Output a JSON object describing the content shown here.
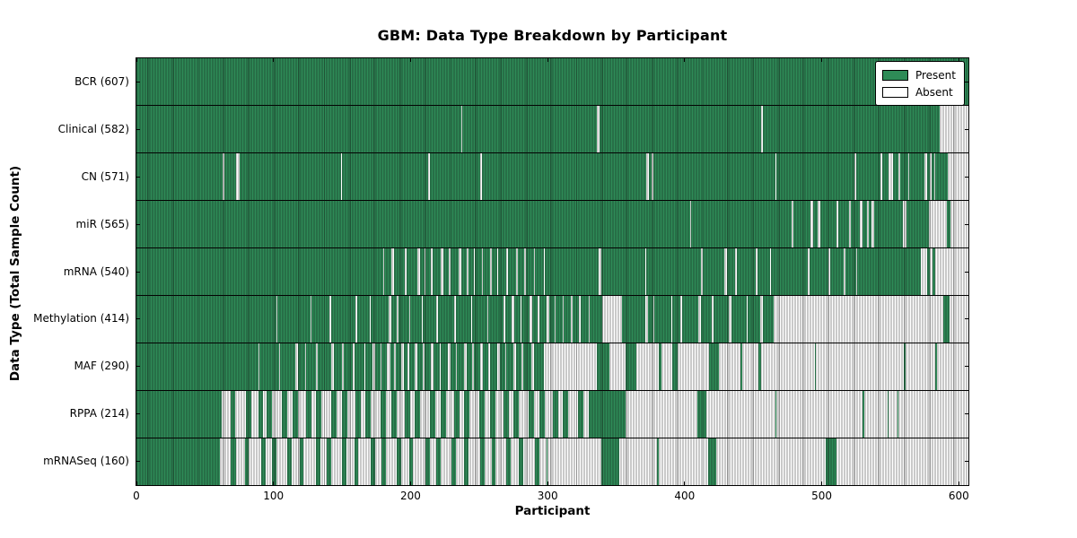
{
  "chart_data": {
    "type": "heatmap",
    "title": "GBM: Data Type Breakdown by Participant",
    "xlabel": "Participant",
    "ylabel": "Data Type (Total Sample Count)",
    "x_ticks": [
      0,
      100,
      200,
      300,
      400,
      500,
      600
    ],
    "x_max": 607,
    "n_participants": 607,
    "grid": "off",
    "legend": {
      "position": "upper right",
      "present_label": "Present",
      "absent_label": "Absent"
    },
    "colors": {
      "present": "#2e8b57",
      "absent": "#ffffff",
      "cell_edge": "#1e1e1e",
      "frame": "#000000"
    },
    "rows": [
      {
        "label": "BCR (607)",
        "name": "BCR",
        "present_count": 607,
        "absent_runs": []
      },
      {
        "label": "Clinical (582)",
        "name": "Clinical",
        "present_count": 582,
        "absent_runs": [
          [
            237,
            1
          ],
          [
            336,
            2
          ],
          [
            456,
            1
          ],
          [
            586,
            21
          ]
        ]
      },
      {
        "label": "CN (571)",
        "name": "CN",
        "present_count": 571,
        "absent_runs": [
          [
            63,
            1
          ],
          [
            73,
            2
          ],
          [
            149,
            1
          ],
          [
            213,
            1
          ],
          [
            251,
            1
          ],
          [
            372,
            2
          ],
          [
            376,
            1
          ],
          [
            466,
            1
          ],
          [
            524,
            1
          ],
          [
            543,
            1
          ],
          [
            549,
            3
          ],
          [
            556,
            1
          ],
          [
            563,
            1
          ],
          [
            575,
            2
          ],
          [
            579,
            1
          ],
          [
            582,
            1
          ],
          [
            592,
            15
          ]
        ]
      },
      {
        "label": "miR (565)",
        "name": "miR",
        "present_count": 565,
        "absent_runs": [
          [
            404,
            1
          ],
          [
            478,
            1
          ],
          [
            492,
            2
          ],
          [
            497,
            2
          ],
          [
            511,
            1
          ],
          [
            520,
            1
          ],
          [
            528,
            2
          ],
          [
            533,
            1
          ],
          [
            536,
            2
          ],
          [
            559,
            3
          ],
          [
            578,
            13
          ],
          [
            594,
            13
          ]
        ]
      },
      {
        "label": "mRNA (540)",
        "name": "mRNA",
        "present_count": 540,
        "absent_runs": [
          [
            180,
            1
          ],
          [
            186,
            2
          ],
          [
            196,
            1
          ],
          [
            205,
            2
          ],
          [
            210,
            1
          ],
          [
            215,
            1
          ],
          [
            222,
            2
          ],
          [
            228,
            1
          ],
          [
            235,
            2
          ],
          [
            241,
            1
          ],
          [
            246,
            1
          ],
          [
            252,
            1
          ],
          [
            258,
            1
          ],
          [
            263,
            1
          ],
          [
            270,
            1
          ],
          [
            277,
            1
          ],
          [
            283,
            1
          ],
          [
            290,
            1
          ],
          [
            297,
            1
          ],
          [
            337,
            2
          ],
          [
            371,
            1
          ],
          [
            412,
            1
          ],
          [
            429,
            2
          ],
          [
            437,
            1
          ],
          [
            452,
            1
          ],
          [
            462,
            1
          ],
          [
            490,
            1
          ],
          [
            505,
            1
          ],
          [
            516,
            1
          ],
          [
            525,
            1
          ],
          [
            572,
            5
          ],
          [
            579,
            2
          ],
          [
            583,
            24
          ]
        ]
      },
      {
        "label": "Methylation (414)",
        "name": "Methylation",
        "present_count": 414,
        "absent_runs": [
          [
            102,
            1
          ],
          [
            127,
            1
          ],
          [
            141,
            1
          ],
          [
            160,
            1
          ],
          [
            170,
            1
          ],
          [
            184,
            2
          ],
          [
            190,
            1
          ],
          [
            199,
            1
          ],
          [
            208,
            1
          ],
          [
            219,
            1
          ],
          [
            232,
            1
          ],
          [
            244,
            1
          ],
          [
            256,
            1
          ],
          [
            268,
            1
          ],
          [
            274,
            2
          ],
          [
            280,
            1
          ],
          [
            287,
            2
          ],
          [
            293,
            1
          ],
          [
            299,
            2
          ],
          [
            305,
            1
          ],
          [
            311,
            1
          ],
          [
            317,
            1
          ],
          [
            323,
            1
          ],
          [
            330,
            1
          ],
          [
            340,
            14
          ],
          [
            371,
            2
          ],
          [
            377,
            1
          ],
          [
            390,
            1
          ],
          [
            397,
            1
          ],
          [
            410,
            2
          ],
          [
            420,
            1
          ],
          [
            432,
            2
          ],
          [
            445,
            1
          ],
          [
            455,
            2
          ],
          [
            465,
            124
          ],
          [
            593,
            14
          ]
        ]
      },
      {
        "label": "MAF (290)",
        "name": "MAF",
        "present_count": 290,
        "absent_runs": [
          [
            89,
            1
          ],
          [
            104,
            1
          ],
          [
            116,
            2
          ],
          [
            123,
            1
          ],
          [
            131,
            1
          ],
          [
            142,
            2
          ],
          [
            150,
            1
          ],
          [
            158,
            1
          ],
          [
            166,
            1
          ],
          [
            172,
            2
          ],
          [
            178,
            1
          ],
          [
            183,
            2
          ],
          [
            188,
            1
          ],
          [
            193,
            2
          ],
          [
            198,
            1
          ],
          [
            203,
            2
          ],
          [
            209,
            1
          ],
          [
            215,
            2
          ],
          [
            221,
            1
          ],
          [
            227,
            2
          ],
          [
            233,
            1
          ],
          [
            239,
            2
          ],
          [
            245,
            1
          ],
          [
            251,
            2
          ],
          [
            257,
            1
          ],
          [
            263,
            2
          ],
          [
            269,
            1
          ],
          [
            275,
            2
          ],
          [
            281,
            1
          ],
          [
            288,
            2
          ],
          [
            297,
            39
          ],
          [
            345,
            12
          ],
          [
            365,
            16
          ],
          [
            383,
            8
          ],
          [
            395,
            23
          ],
          [
            425,
            16
          ],
          [
            442,
            12
          ],
          [
            456,
            39
          ],
          [
            496,
            64
          ],
          [
            561,
            22
          ],
          [
            584,
            23
          ]
        ]
      },
      {
        "label": "RPPA (214)",
        "name": "RPPA",
        "present_count": 214,
        "absent_runs": [
          [
            62,
            7
          ],
          [
            72,
            8
          ],
          [
            84,
            5
          ],
          [
            92,
            3
          ],
          [
            99,
            7
          ],
          [
            110,
            4
          ],
          [
            118,
            6
          ],
          [
            128,
            3
          ],
          [
            135,
            7
          ],
          [
            146,
            4
          ],
          [
            154,
            6
          ],
          [
            164,
            3
          ],
          [
            171,
            7
          ],
          [
            182,
            4
          ],
          [
            190,
            6
          ],
          [
            200,
            3
          ],
          [
            207,
            7
          ],
          [
            218,
            4
          ],
          [
            226,
            6
          ],
          [
            236,
            3
          ],
          [
            243,
            7
          ],
          [
            254,
            4
          ],
          [
            262,
            6
          ],
          [
            272,
            3
          ],
          [
            279,
            7
          ],
          [
            290,
            4
          ],
          [
            298,
            6
          ],
          [
            308,
            3
          ],
          [
            315,
            7
          ],
          [
            326,
            4
          ],
          [
            357,
            52
          ],
          [
            416,
            50
          ],
          [
            467,
            63
          ],
          [
            531,
            17
          ],
          [
            549,
            6
          ],
          [
            556,
            51
          ]
        ]
      },
      {
        "label": "mRNASeq (160)",
        "name": "mRNASeq",
        "present_count": 160,
        "absent_runs": [
          [
            61,
            8
          ],
          [
            73,
            6
          ],
          [
            82,
            9
          ],
          [
            94,
            5
          ],
          [
            102,
            8
          ],
          [
            113,
            6
          ],
          [
            122,
            9
          ],
          [
            134,
            5
          ],
          [
            142,
            8
          ],
          [
            153,
            6
          ],
          [
            162,
            9
          ],
          [
            174,
            5
          ],
          [
            182,
            8
          ],
          [
            193,
            6
          ],
          [
            202,
            9
          ],
          [
            214,
            5
          ],
          [
            222,
            8
          ],
          [
            233,
            6
          ],
          [
            242,
            9
          ],
          [
            254,
            5
          ],
          [
            262,
            8
          ],
          [
            273,
            6
          ],
          [
            282,
            9
          ],
          [
            294,
            5
          ],
          [
            300,
            39
          ],
          [
            352,
            28
          ],
          [
            381,
            36
          ],
          [
            423,
            80
          ],
          [
            511,
            96
          ]
        ]
      }
    ]
  }
}
